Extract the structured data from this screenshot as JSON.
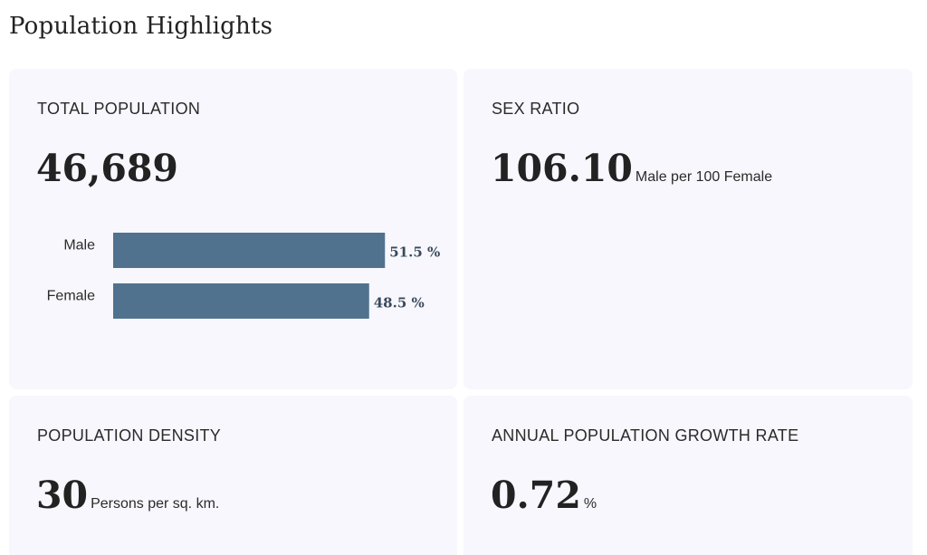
{
  "header": {
    "title": "Population Highlights"
  },
  "cards": {
    "total_population": {
      "label": "TOTAL POPULATION",
      "value": "46,689"
    },
    "sex_ratio": {
      "label": "SEX RATIO",
      "value": "106.10",
      "unit": "Male per 100 Female"
    },
    "density": {
      "label": "POPULATION DENSITY",
      "value": "30",
      "unit": "Persons per sq. km."
    },
    "growth_rate": {
      "label": "ANNUAL POPULATION GROWTH RATE",
      "value": "0.72",
      "unit": "%"
    }
  },
  "colors": {
    "bar": "#51728f",
    "card_bg": "#f7f7fd"
  },
  "chart_data": {
    "type": "bar",
    "orientation": "horizontal",
    "categories": [
      "Male",
      "Female"
    ],
    "values": [
      51.5,
      48.5
    ],
    "value_labels": [
      "51.5 %",
      "48.5 %"
    ],
    "xlim": [
      0,
      100
    ],
    "grid": false
  }
}
